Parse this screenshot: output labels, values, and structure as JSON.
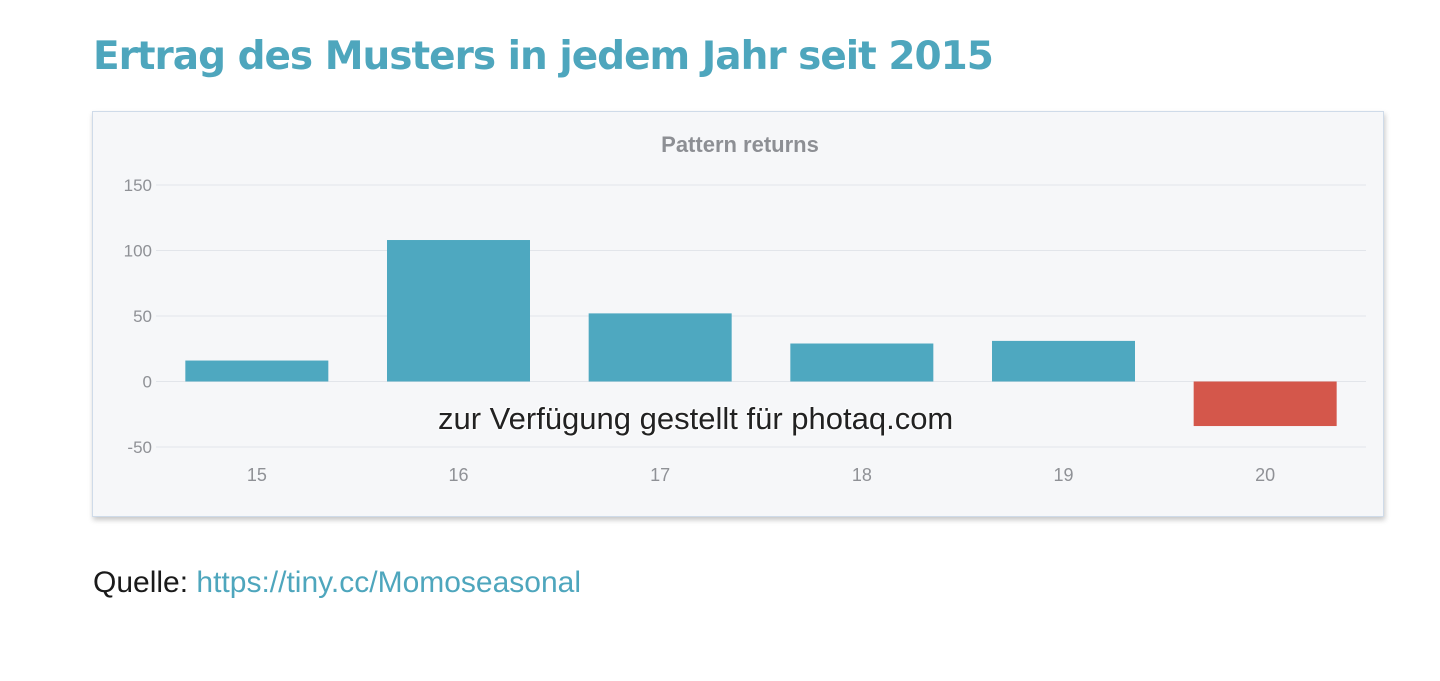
{
  "headline": "Ertrag des Musters in jedem Jahr seit 2015",
  "watermark": "zur Verfügung gestellt für photaq.com",
  "source": {
    "label": "Quelle:",
    "link_text": "https://tiny.cc/Momoseasonal"
  },
  "colors": {
    "headline": "#4ea6bd",
    "positive_bar": "#4ea8c0",
    "negative_bar": "#d4574b",
    "link": "#4ea6bd"
  },
  "chart_data": {
    "type": "bar",
    "title": "Pattern returns",
    "categories": [
      "15",
      "16",
      "17",
      "18",
      "19",
      "20"
    ],
    "values": [
      16,
      108,
      52,
      29,
      31,
      -34
    ],
    "ylim": [
      -50,
      150
    ],
    "yticks": [
      150,
      100,
      50,
      0,
      -50
    ],
    "xlabel": "",
    "ylabel": "",
    "grid": true,
    "legend": "none"
  }
}
